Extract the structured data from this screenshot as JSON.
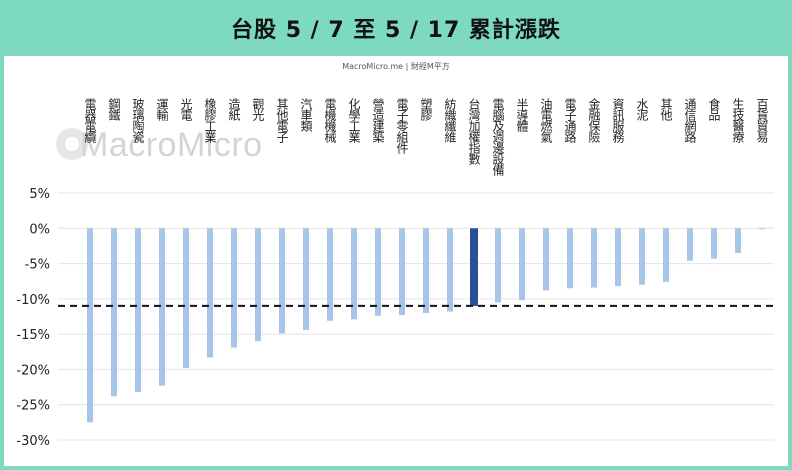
{
  "header": {
    "title": "台股 5 / 7 至 5 / 17 累計漲跌",
    "source": "MacroMicro.me | 財經M平方",
    "watermark": "MacroMicro"
  },
  "colors": {
    "bar": "#a7c5e8",
    "highlight": "#2a4f92",
    "accent": "#7dd9c0",
    "grid": "#e4e4e4",
    "reference_line": "#111111"
  },
  "chart_data": {
    "type": "bar",
    "title": "台股 5 / 7 至 5 / 17 累計漲跌",
    "categories": [
      "電器電纜",
      "鋼鐵",
      "玻璃陶瓷",
      "運輸",
      "光電",
      "橡膠工業",
      "造紙",
      "觀光",
      "其他電子",
      "汽車類",
      "電機機械",
      "化學工業",
      "營造建築",
      "電子零組件",
      "塑膠",
      "紡織纖維",
      "台灣加權指數",
      "電腦及週邊設備",
      "半導體",
      "油電燃氣",
      "電子通路",
      "金融保險",
      "資訊服務",
      "水泥",
      "其他",
      "通信網路",
      "食品",
      "生技醫療",
      "百貨貿易"
    ],
    "values": [
      -27.5,
      -23.8,
      -23.2,
      -22.3,
      -19.8,
      -18.3,
      -16.9,
      -16.0,
      -14.9,
      -14.4,
      -13.1,
      -12.9,
      -12.4,
      -12.3,
      -12.0,
      -11.8,
      -11.0,
      -10.5,
      -10.2,
      -8.8,
      -8.5,
      -8.4,
      -8.2,
      -8.0,
      -7.6,
      -4.6,
      -4.3,
      -3.5,
      -0.1
    ],
    "highlight_category": "台灣加權指數",
    "reference_value": -11.0,
    "ylim": [
      -30,
      5
    ],
    "yticks": [
      "5%",
      "0%",
      "-5%",
      "-10%",
      "-15%",
      "-20%",
      "-25%",
      "-30%"
    ],
    "ytick_values": [
      5,
      0,
      -5,
      -10,
      -15,
      -20,
      -25,
      -30
    ],
    "grid": true,
    "legend": "none"
  }
}
